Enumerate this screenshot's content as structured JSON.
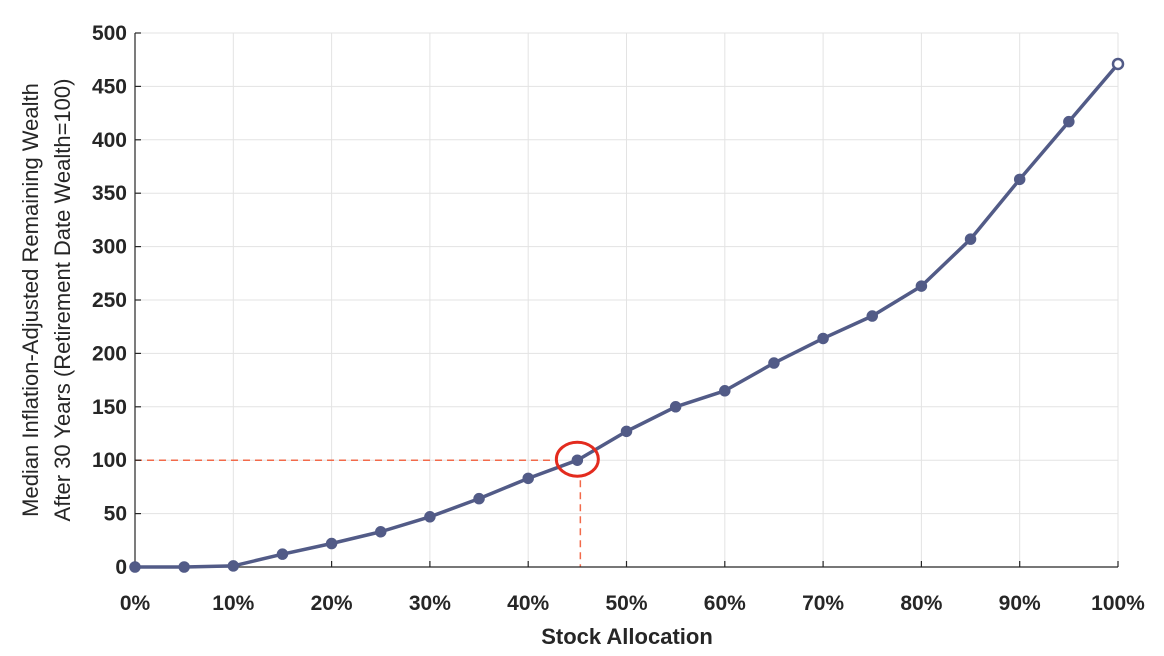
{
  "chart_data": {
    "type": "line",
    "title": "",
    "xlabel": "Stock Allocation",
    "ylabel_lines": [
      "Median Inflation-Adjusted Remaining Wealth",
      "After 30 Years (Retirement Date Wealth=100)"
    ],
    "xlim": [
      0,
      100
    ],
    "ylim": [
      0,
      500
    ],
    "x_ticks": [
      0,
      10,
      20,
      30,
      40,
      50,
      60,
      70,
      80,
      90,
      100
    ],
    "x_tick_labels": [
      "0%",
      "10%",
      "20%",
      "30%",
      "40%",
      "50%",
      "60%",
      "70%",
      "80%",
      "90%",
      "100%"
    ],
    "y_ticks": [
      0,
      50,
      100,
      150,
      200,
      250,
      300,
      350,
      400,
      450,
      500
    ],
    "y_tick_labels": [
      "0",
      "50",
      "100",
      "150",
      "200",
      "250",
      "300",
      "350",
      "400",
      "450",
      "500"
    ],
    "grid": true,
    "series": [
      {
        "color": "#525b87",
        "x": [
          0,
          5,
          10,
          15,
          20,
          25,
          30,
          35,
          40,
          45,
          50,
          55,
          60,
          65,
          70,
          75,
          80,
          85,
          90,
          95,
          100
        ],
        "y": [
          0,
          0,
          1,
          12,
          22,
          33,
          47,
          64,
          83,
          100,
          127,
          150,
          165,
          191,
          214,
          235,
          263,
          307,
          363,
          417,
          471
        ]
      }
    ],
    "reference": {
      "x": 45,
      "y": 100,
      "color": "#f26a4a",
      "highlight_color": "#e32b1e"
    }
  }
}
